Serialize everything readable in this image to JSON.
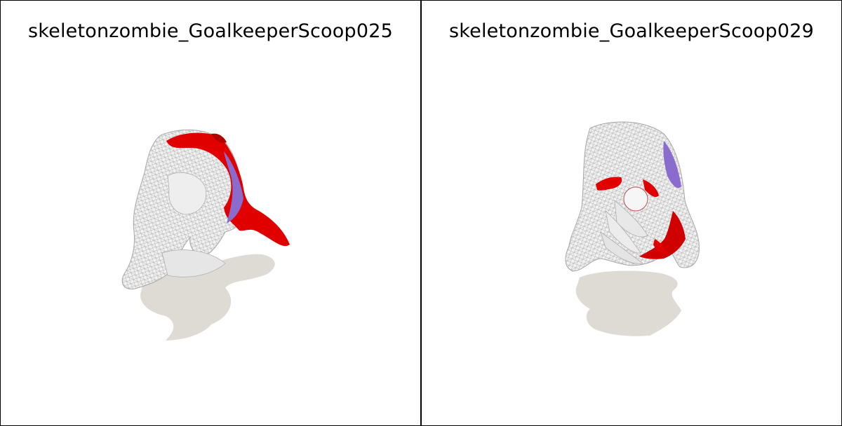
{
  "panels": [
    {
      "title": "skeletonzombie_GoalkeeperScoop025"
    },
    {
      "title": "skeletonzombie_GoalkeeperScoop029"
    }
  ],
  "colors": {
    "mesh": "#d8d8d8",
    "mesh_line": "#9a9a9a",
    "highlight": "#e00000",
    "purple": "#8a6ccf",
    "shadow": "#dedbd4"
  }
}
